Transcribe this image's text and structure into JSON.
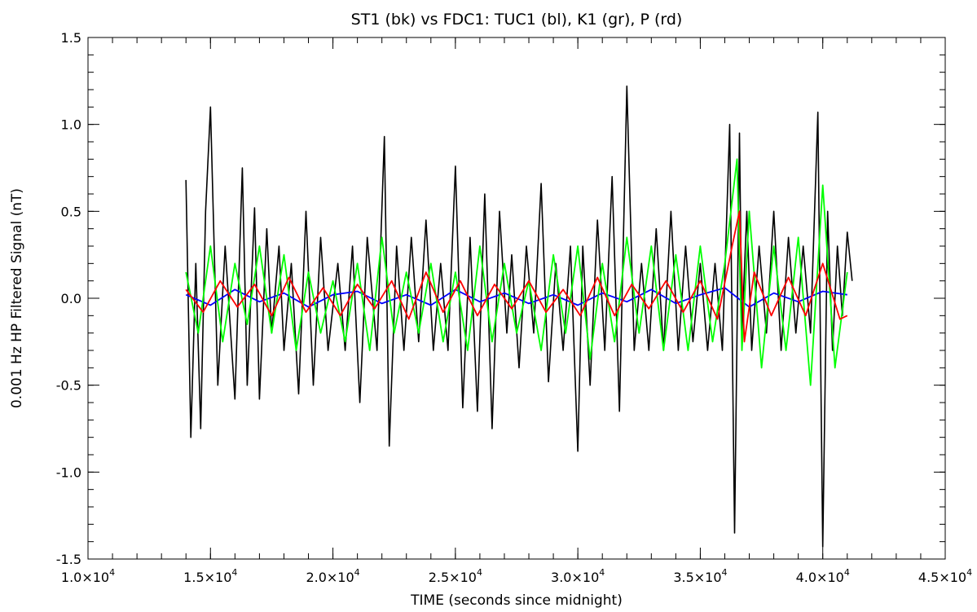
{
  "chart_data": {
    "type": "line",
    "title": "ST1 (bk) vs FDC1: TUC1 (bl), K1 (gr), P (rd)",
    "xlabel": "TIME (seconds since midnight)",
    "ylabel": "0.001 Hz HP Filtered Signal (nT)",
    "xlim": [
      10000,
      45000
    ],
    "ylim": [
      -1.5,
      1.5
    ],
    "x_ticks": [
      {
        "value": 10000,
        "mantissa": "1.0",
        "exp": "4"
      },
      {
        "value": 15000,
        "mantissa": "1.5",
        "exp": "4"
      },
      {
        "value": 20000,
        "mantissa": "2.0",
        "exp": "4"
      },
      {
        "value": 25000,
        "mantissa": "2.5",
        "exp": "4"
      },
      {
        "value": 30000,
        "mantissa": "3.0",
        "exp": "4"
      },
      {
        "value": 35000,
        "mantissa": "3.5",
        "exp": "4"
      },
      {
        "value": 40000,
        "mantissa": "4.0",
        "exp": "4"
      },
      {
        "value": 45000,
        "mantissa": "4.5",
        "exp": "4"
      }
    ],
    "y_ticks": [
      {
        "value": 1.5,
        "label": "1.5"
      },
      {
        "value": 1.0,
        "label": "1.0"
      },
      {
        "value": 0.5,
        "label": "0.5"
      },
      {
        "value": 0.0,
        "label": "0.0"
      },
      {
        "value": -0.5,
        "label": "-0.5"
      },
      {
        "value": -1.0,
        "label": "-1.0"
      },
      {
        "value": -1.5,
        "label": "-1.5"
      }
    ],
    "series": [
      {
        "color": "#000000",
        "x": [
          14000,
          14200,
          14400,
          14600,
          14800,
          15000,
          15300,
          15600,
          16000,
          16300,
          16500,
          16800,
          17000,
          17300,
          17500,
          17800,
          18000,
          18300,
          18600,
          18900,
          19200,
          19500,
          19800,
          20200,
          20500,
          20800,
          21100,
          21400,
          21800,
          22100,
          22300,
          22600,
          22900,
          23200,
          23500,
          23800,
          24100,
          24400,
          24700,
          25000,
          25300,
          25600,
          25900,
          26200,
          26500,
          26800,
          27100,
          27300,
          27600,
          27900,
          28200,
          28500,
          28800,
          29100,
          29400,
          29700,
          30000,
          30200,
          30500,
          30800,
          31100,
          31400,
          31700,
          32000,
          32300,
          32600,
          32900,
          33200,
          33500,
          33800,
          34100,
          34400,
          34700,
          35000,
          35300,
          35600,
          35900,
          36200,
          36400,
          36600,
          36700,
          36900,
          37100,
          37400,
          37700,
          38000,
          38300,
          38600,
          38900,
          39200,
          39500,
          39800,
          40000,
          40200,
          40400,
          40600,
          40800,
          41000,
          41200
        ],
        "values": [
          0.68,
          -0.8,
          0.2,
          -0.75,
          0.5,
          1.1,
          -0.5,
          0.3,
          -0.58,
          0.75,
          -0.5,
          0.52,
          -0.58,
          0.4,
          -0.2,
          0.3,
          -0.3,
          0.2,
          -0.55,
          0.5,
          -0.5,
          0.35,
          -0.3,
          0.2,
          -0.3,
          0.3,
          -0.6,
          0.35,
          -0.3,
          0.93,
          -0.85,
          0.3,
          -0.3,
          0.35,
          -0.25,
          0.45,
          -0.3,
          0.2,
          -0.3,
          0.76,
          -0.63,
          0.35,
          -0.65,
          0.6,
          -0.75,
          0.5,
          -0.2,
          0.25,
          -0.4,
          0.3,
          -0.2,
          0.66,
          -0.48,
          0.2,
          -0.3,
          0.3,
          -0.88,
          0.3,
          -0.5,
          0.45,
          -0.3,
          0.7,
          -0.65,
          1.22,
          -0.3,
          0.2,
          -0.3,
          0.4,
          -0.3,
          0.5,
          -0.3,
          0.3,
          -0.25,
          0.2,
          -0.3,
          0.2,
          -0.3,
          1.0,
          -1.35,
          0.95,
          -0.2,
          0.5,
          -0.3,
          0.3,
          -0.2,
          0.5,
          -0.3,
          0.35,
          -0.2,
          0.3,
          -0.2,
          1.07,
          -1.43,
          0.5,
          -0.3,
          0.3,
          -0.1,
          0.38,
          0.1
        ]
      },
      {
        "color": "#0000ff",
        "x": [
          14000,
          15000,
          16000,
          17000,
          18000,
          19000,
          20000,
          21000,
          22000,
          23000,
          24000,
          25000,
          26000,
          27000,
          28000,
          29000,
          30000,
          31000,
          32000,
          33000,
          34000,
          35000,
          36000,
          37000,
          38000,
          39000,
          40000,
          41000
        ],
        "values": [
          0.02,
          -0.04,
          0.05,
          -0.02,
          0.03,
          -0.05,
          0.02,
          0.04,
          -0.03,
          0.02,
          -0.04,
          0.05,
          -0.02,
          0.03,
          -0.03,
          0.02,
          -0.04,
          0.03,
          -0.02,
          0.05,
          -0.03,
          0.02,
          0.06,
          -0.05,
          0.03,
          -0.02,
          0.04,
          0.02
        ]
      },
      {
        "color": "#00ff00",
        "x": [
          14000,
          14500,
          15000,
          15500,
          16000,
          16500,
          17000,
          17500,
          18000,
          18500,
          19000,
          19500,
          20000,
          20500,
          21000,
          21500,
          22000,
          22500,
          23000,
          23500,
          24000,
          24500,
          25000,
          25500,
          26000,
          26500,
          27000,
          27500,
          28000,
          28500,
          29000,
          29500,
          30000,
          30500,
          31000,
          31500,
          32000,
          32500,
          33000,
          33500,
          34000,
          34500,
          35000,
          35500,
          36000,
          36500,
          36700,
          37000,
          37500,
          38000,
          38500,
          39000,
          39500,
          40000,
          40500,
          41000
        ],
        "values": [
          0.15,
          -0.2,
          0.3,
          -0.25,
          0.2,
          -0.15,
          0.3,
          -0.2,
          0.25,
          -0.3,
          0.15,
          -0.2,
          0.1,
          -0.25,
          0.2,
          -0.3,
          0.35,
          -0.2,
          0.15,
          -0.2,
          0.2,
          -0.25,
          0.15,
          -0.3,
          0.3,
          -0.25,
          0.2,
          -0.2,
          0.1,
          -0.3,
          0.25,
          -0.2,
          0.3,
          -0.35,
          0.2,
          -0.25,
          0.35,
          -0.2,
          0.3,
          -0.3,
          0.25,
          -0.3,
          0.3,
          -0.25,
          0.2,
          0.8,
          -0.3,
          0.5,
          -0.4,
          0.3,
          -0.3,
          0.35,
          -0.5,
          0.65,
          -0.4,
          0.15
        ]
      },
      {
        "color": "#ff0000",
        "x": [
          14000,
          14700,
          15400,
          16100,
          16800,
          17500,
          18200,
          18900,
          19600,
          20300,
          21000,
          21700,
          22400,
          23100,
          23800,
          24500,
          25200,
          25900,
          26600,
          27300,
          28000,
          28700,
          29400,
          30100,
          30800,
          31500,
          32200,
          32900,
          33600,
          34300,
          35000,
          35700,
          36300,
          36600,
          36800,
          37200,
          37900,
          38600,
          39300,
          40000,
          40700,
          41000
        ],
        "values": [
          0.05,
          -0.08,
          0.1,
          -0.05,
          0.08,
          -0.1,
          0.12,
          -0.08,
          0.06,
          -0.1,
          0.08,
          -0.06,
          0.1,
          -0.12,
          0.15,
          -0.08,
          0.1,
          -0.1,
          0.08,
          -0.06,
          0.1,
          -0.08,
          0.05,
          -0.1,
          0.12,
          -0.1,
          0.08,
          -0.06,
          0.1,
          -0.08,
          0.1,
          -0.12,
          0.3,
          0.5,
          -0.25,
          0.15,
          -0.1,
          0.12,
          -0.1,
          0.2,
          -0.12,
          -0.1
        ]
      }
    ]
  }
}
